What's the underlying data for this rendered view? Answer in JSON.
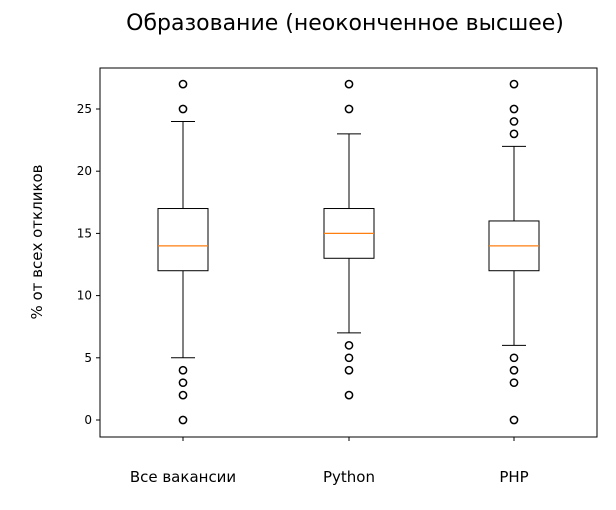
{
  "chart_data": {
    "type": "boxplot",
    "title": "Образование (неоконченное высшее)",
    "xlabel": "",
    "ylabel": "% от всех откликов",
    "ylim": [
      -1.3,
      28.3
    ],
    "yticks": [
      0,
      5,
      10,
      15,
      20,
      25
    ],
    "grid": false,
    "categories": [
      "Все вакансии",
      "Python",
      "PHP"
    ],
    "boxes": [
      {
        "name": "Все вакансии",
        "whisker_low": 5,
        "q1": 12,
        "median": 14,
        "q3": 17,
        "whisker_high": 24,
        "outliers": [
          25,
          27,
          4,
          3,
          2,
          0
        ]
      },
      {
        "name": "Python",
        "whisker_low": 7,
        "q1": 13,
        "median": 15,
        "q3": 17,
        "whisker_high": 23,
        "outliers": [
          25,
          27,
          6,
          5,
          4,
          2
        ]
      },
      {
        "name": "PHP",
        "whisker_low": 6,
        "q1": 12,
        "median": 14,
        "q3": 16,
        "whisker_high": 22,
        "outliers": [
          23,
          24,
          25,
          27,
          5,
          4,
          3,
          0
        ]
      }
    ],
    "colors": {
      "median": "#ff7f0e",
      "box": "#000000"
    }
  }
}
